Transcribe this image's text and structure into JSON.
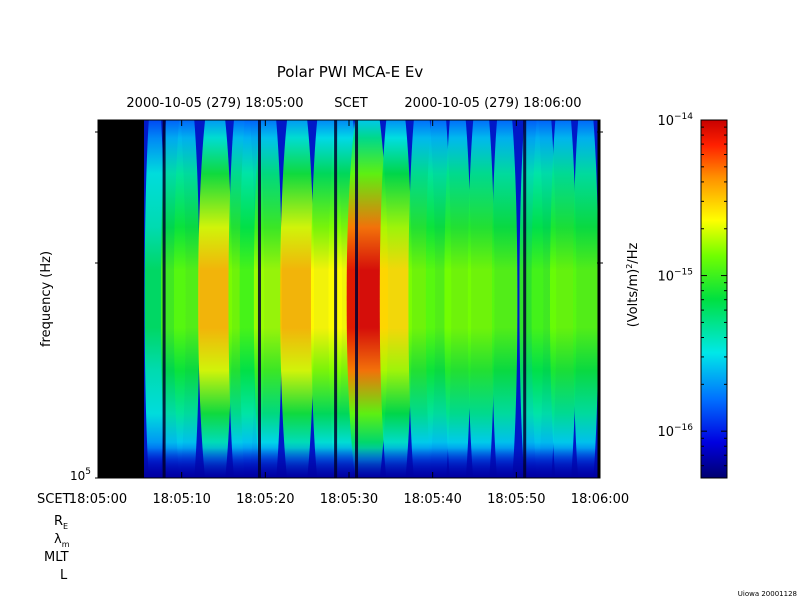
{
  "chart_data": {
    "type": "heatmap",
    "title": "Polar PWI MCA-E Ev",
    "top_labels": {
      "left_date": "2000-10-05 (279) 18:05:00",
      "scet": "SCET",
      "right_date": "2000-10-05 (279) 18:06:00"
    },
    "ylabel": "frequency (Hz)",
    "y_tick_label_base": "10",
    "y_tick_label_exp": "5",
    "x_prefix": "SCET",
    "x_ticks": [
      "18:05:00",
      "18:05:10",
      "18:05:20",
      "18:05:30",
      "18:05:40",
      "18:05:50",
      "18:06:00"
    ],
    "xlim_seconds": [
      0,
      60
    ],
    "ephemeris_labels": {
      "re_main": "R",
      "re_sub": "E",
      "lambda_main": "λ",
      "lambda_sub": "m",
      "mlt": "MLT",
      "l": "L"
    },
    "colorbar": {
      "label_main": "(Volts/m)",
      "label_sup": "2",
      "label_tail": "/Hz",
      "scale": "log",
      "range": [
        5e-17,
        1e-14
      ],
      "ticks": [
        {
          "value": 1e-14,
          "base": "10",
          "exp": "−14"
        },
        {
          "value": 1e-15,
          "base": "10",
          "exp": "−15"
        },
        {
          "value": 1e-16,
          "base": "10",
          "exp": "−16"
        }
      ]
    },
    "no_data_intervals_seconds": [
      [
        0,
        5.5
      ],
      [
        59.7,
        60
      ]
    ],
    "emission_bursts": [
      {
        "t": 6.8,
        "amplitude": 0.3
      },
      {
        "t": 9.0,
        "amplitude": 0.4
      },
      {
        "t": 10.6,
        "amplitude": 0.42
      },
      {
        "t": 14.0,
        "amplitude": 0.62
      },
      {
        "t": 17.2,
        "amplitude": 0.45
      },
      {
        "t": 18.4,
        "amplitude": 0.4
      },
      {
        "t": 20.3,
        "amplitude": 0.48
      },
      {
        "t": 23.8,
        "amplitude": 0.62
      },
      {
        "t": 27.3,
        "amplitude": 0.55
      },
      {
        "t": 29.4,
        "amplitude": 0.55
      },
      {
        "t": 32.2,
        "amplitude": 0.8
      },
      {
        "t": 35.6,
        "amplitude": 0.58
      },
      {
        "t": 38.7,
        "amplitude": 0.45
      },
      {
        "t": 40.7,
        "amplitude": 0.42
      },
      {
        "t": 43.0,
        "amplitude": 0.45
      },
      {
        "t": 45.8,
        "amplitude": 0.45
      },
      {
        "t": 48.6,
        "amplitude": 0.42
      },
      {
        "t": 51.8,
        "amplitude": 0.38
      },
      {
        "t": 53.3,
        "amplitude": 0.4
      },
      {
        "t": 55.6,
        "amplitude": 0.44
      },
      {
        "t": 58.3,
        "amplitude": 0.42
      }
    ],
    "dark_gaps_seconds": [
      7.9,
      19.3,
      28.4,
      30.9,
      51.0
    ],
    "footer_stamp": "Uiowa 20001128"
  }
}
